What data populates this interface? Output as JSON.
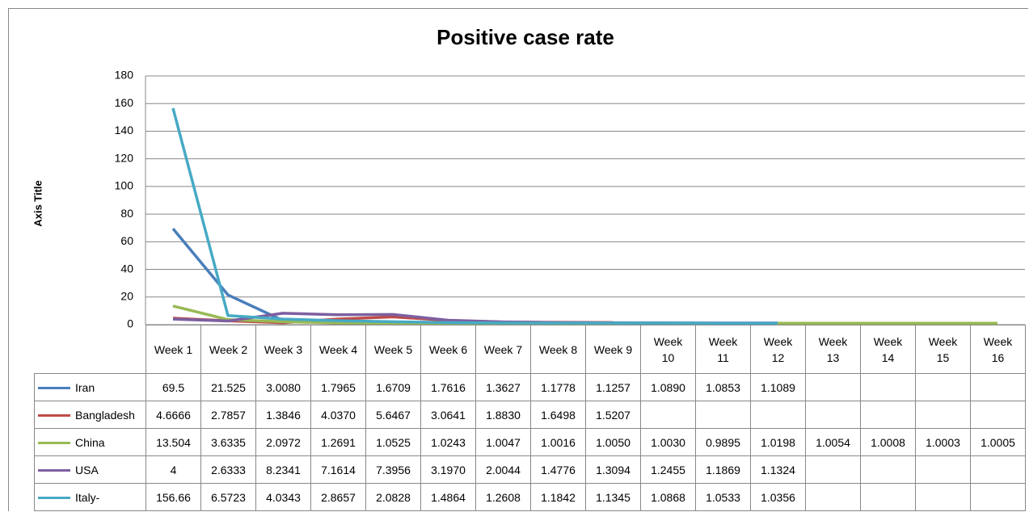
{
  "chart_data": {
    "type": "line",
    "title": "Positive case rate",
    "y_axis_title": "Axis Title",
    "categories": [
      "Week 1",
      "Week 2",
      "Week 3",
      "Week 4",
      "Week 5",
      "Week 6",
      "Week 7",
      "Week 8",
      "Week 9",
      "Week 10",
      "Week 11",
      "Week 12",
      "Week 13",
      "Week 14",
      "Week 15",
      "Week 16"
    ],
    "ylim": [
      0,
      180
    ],
    "yticks": [
      0,
      20,
      40,
      60,
      80,
      100,
      120,
      140,
      160,
      180
    ],
    "grid": true,
    "series": [
      {
        "name": "Iran",
        "color": "#4a7ebb",
        "values": [
          69.5,
          21.525,
          3.008,
          1.7965,
          1.6709,
          1.7616,
          1.3627,
          1.1778,
          1.1257,
          1.089,
          1.0853,
          1.1089,
          null,
          null,
          null,
          null
        ],
        "value_labels": [
          "69.5",
          "21.525",
          "3.0080",
          "1.7965",
          "1.6709",
          "1.7616",
          "1.3627",
          "1.1778",
          "1.1257",
          "1.0890",
          "1.0853",
          "1.1089",
          null,
          null,
          null,
          null
        ]
      },
      {
        "name": "Bangladesh",
        "color": "#be4b48",
        "values": [
          4.6666,
          2.7857,
          1.3846,
          4.037,
          5.6467,
          3.0641,
          1.883,
          1.6498,
          1.5207,
          null,
          null,
          null,
          null,
          null,
          null,
          null
        ],
        "value_labels": [
          "4.6666",
          "2.7857",
          "1.3846",
          "4.0370",
          "5.6467",
          "3.0641",
          "1.8830",
          "1.6498",
          "1.5207",
          null,
          null,
          null,
          null,
          null,
          null,
          null
        ]
      },
      {
        "name": "China",
        "color": "#98b954",
        "values": [
          13.504,
          3.6335,
          2.0972,
          1.2691,
          1.0525,
          1.0243,
          1.0047,
          1.0016,
          1.005,
          1.003,
          0.9895,
          1.0198,
          1.0054,
          1.0008,
          1.0003,
          1.0005
        ],
        "value_labels": [
          "13.504",
          "3.6335",
          "2.0972",
          "1.2691",
          "1.0525",
          "1.0243",
          "1.0047",
          "1.0016",
          "1.0050",
          "1.0030",
          "0.9895",
          "1.0198",
          "1.0054",
          "1.0008",
          "1.0003",
          "1.0005"
        ]
      },
      {
        "name": "USA",
        "color": "#7d5fa0",
        "values": [
          4,
          2.6333,
          8.2341,
          7.1614,
          7.3956,
          3.197,
          2.0044,
          1.4776,
          1.3094,
          1.2455,
          1.1869,
          1.1324,
          null,
          null,
          null,
          null
        ],
        "value_labels": [
          "4",
          "2.6333",
          "8.2341",
          "7.1614",
          "7.3956",
          "3.1970",
          "2.0044",
          "1.4776",
          "1.3094",
          "1.2455",
          "1.1869",
          "1.1324",
          null,
          null,
          null,
          null
        ]
      },
      {
        "name": "Italy-",
        "color": "#46aac5",
        "values": [
          156.66,
          6.5723,
          4.0343,
          2.8657,
          2.0828,
          1.4864,
          1.2608,
          1.1842,
          1.1345,
          1.0868,
          1.0533,
          1.0356,
          null,
          null,
          null,
          null
        ],
        "value_labels": [
          "156.66",
          "6.5723",
          "4.0343",
          "2.8657",
          "2.0828",
          "1.4864",
          "1.2608",
          "1.1842",
          "1.1345",
          "1.0868",
          "1.0533",
          "1.0356",
          null,
          null,
          null,
          null
        ]
      }
    ]
  }
}
